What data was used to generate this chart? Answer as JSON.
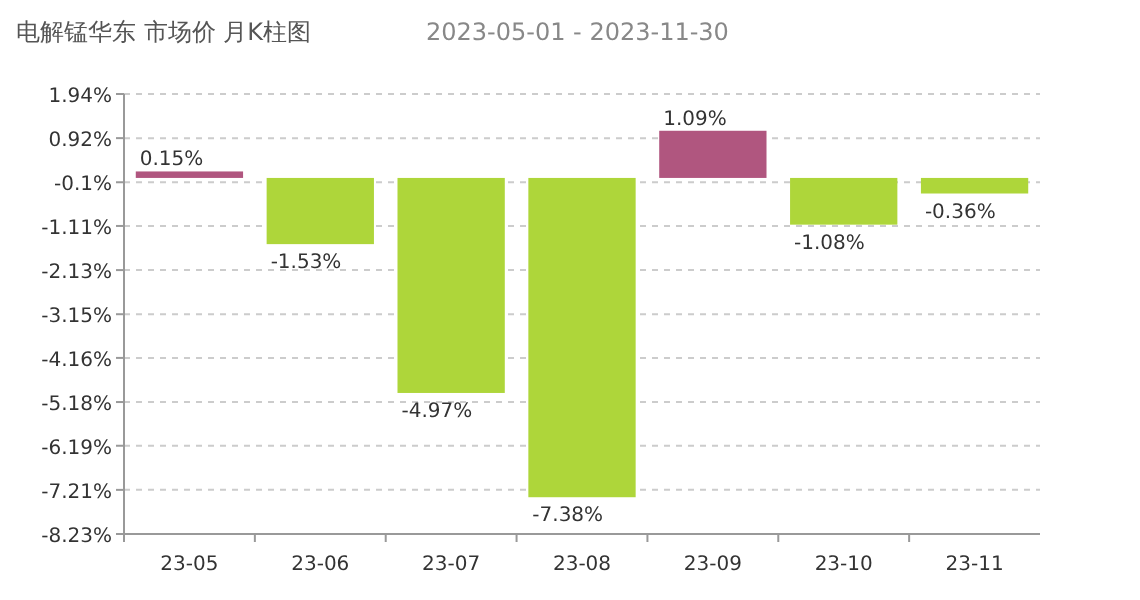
{
  "chart_data": {
    "type": "bar",
    "title": "电解锰华东 市场价 月K柱图",
    "subtitle": "2023-05-01 - 2023-11-30",
    "categories": [
      "23-05",
      "23-06",
      "23-07",
      "23-08",
      "23-09",
      "23-10",
      "23-11"
    ],
    "values": [
      0.15,
      -1.53,
      -4.97,
      -7.38,
      1.09,
      -1.08,
      -0.36
    ],
    "value_labels": [
      "0.15%",
      "-1.53%",
      "-4.97%",
      "-7.38%",
      "1.09%",
      "-1.08%",
      "-0.36%"
    ],
    "colors": [
      "#b0567f",
      "#aed63a",
      "#aed63a",
      "#aed63a",
      "#b0567f",
      "#aed63a",
      "#aed63a"
    ],
    "ylim": [
      -8.23,
      1.94
    ],
    "yticks": [
      {
        "value": 1.94,
        "label": "1.94%"
      },
      {
        "value": 0.92,
        "label": "0.92%"
      },
      {
        "value": -0.1,
        "label": "-0.1%"
      },
      {
        "value": -1.11,
        "label": "-1.11%"
      },
      {
        "value": -2.13,
        "label": "-2.13%"
      },
      {
        "value": -3.15,
        "label": "-3.15%"
      },
      {
        "value": -4.16,
        "label": "-4.16%"
      },
      {
        "value": -5.18,
        "label": "-5.18%"
      },
      {
        "value": -6.19,
        "label": "-6.19%"
      },
      {
        "value": -7.21,
        "label": "-7.21%"
      },
      {
        "value": -8.23,
        "label": "-8.23%"
      }
    ],
    "grid": "y"
  }
}
